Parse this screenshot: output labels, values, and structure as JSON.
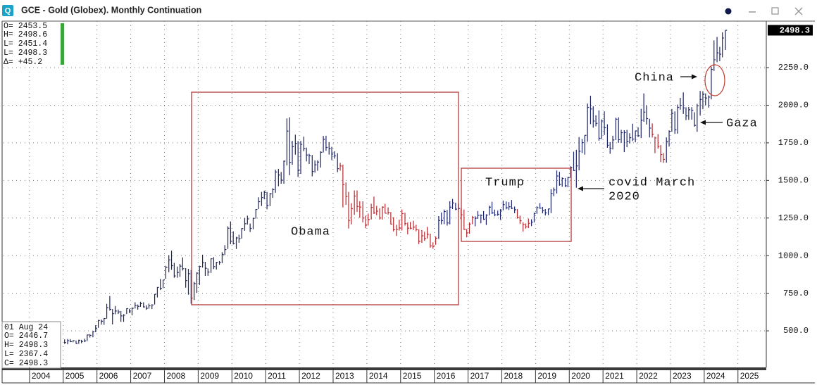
{
  "window_title": "GCE - Gold (Globex). Monthly Continuation",
  "header_info": [
    "O= 2453.5",
    "H= 2498.6",
    "L= 2451.4",
    "L= 2498.3",
    "Δ=  +45.2"
  ],
  "bar_info": [
    "01 Aug 24",
    "O=  2446.7",
    "H=  2498.3",
    "L=  2367.4",
    "C=  2498.3"
  ],
  "chart_data": {
    "type": "ohlc",
    "annotations": [
      "Obama",
      "Trump",
      "covid March",
      "2020",
      "China",
      "Gaza"
    ],
    "last_price": 2498.3,
    "xlim": [
      2003.23,
      2025.84
    ],
    "xticks": [
      2004,
      2005,
      2006,
      2007,
      2008,
      2009,
      2010,
      2011,
      2012,
      2013,
      2014,
      2015,
      2016,
      2017,
      2018,
      2019,
      2020,
      2021,
      2022,
      2023,
      2024,
      2025
    ],
    "ylim": [
      257,
      2559
    ],
    "yticks": [
      {
        "value": 500,
        "label": "500.0"
      },
      {
        "value": 750,
        "label": "750.0"
      },
      {
        "value": 1000,
        "label": "1000.0"
      },
      {
        "value": 1250,
        "label": "1250.0"
      },
      {
        "value": 1500,
        "label": "1500.0"
      },
      {
        "value": 1750,
        "label": "1750.0"
      },
      {
        "value": 2000,
        "label": "2000.0"
      },
      {
        "value": 2250,
        "label": "2250.0"
      }
    ],
    "grid": true,
    "x": [
      2005.04,
      2005.13,
      2005.21,
      2005.29,
      2005.38,
      2005.46,
      2005.54,
      2005.63,
      2005.71,
      2005.79,
      2005.88,
      2005.96,
      2006.04,
      2006.13,
      2006.21,
      2006.29,
      2006.38,
      2006.46,
      2006.54,
      2006.63,
      2006.71,
      2006.79,
      2006.88,
      2006.96,
      2007.04,
      2007.13,
      2007.21,
      2007.29,
      2007.38,
      2007.46,
      2007.54,
      2007.63,
      2007.71,
      2007.79,
      2007.88,
      2007.96,
      2008.04,
      2008.13,
      2008.21,
      2008.29,
      2008.38,
      2008.46,
      2008.54,
      2008.63,
      2008.71,
      2008.79,
      2008.88,
      2008.96,
      2009.04,
      2009.13,
      2009.21,
      2009.29,
      2009.38,
      2009.46,
      2009.54,
      2009.63,
      2009.71,
      2009.79,
      2009.88,
      2009.96,
      2010.04,
      2010.13,
      2010.21,
      2010.29,
      2010.38,
      2010.46,
      2010.54,
      2010.63,
      2010.71,
      2010.79,
      2010.88,
      2010.96,
      2011.04,
      2011.13,
      2011.21,
      2011.29,
      2011.38,
      2011.46,
      2011.54,
      2011.63,
      2011.71,
      2011.79,
      2011.88,
      2011.96,
      2012.04,
      2012.13,
      2012.21,
      2012.29,
      2012.38,
      2012.46,
      2012.54,
      2012.63,
      2012.71,
      2012.79,
      2012.88,
      2012.96,
      2013.04,
      2013.13,
      2013.21,
      2013.29,
      2013.38,
      2013.46,
      2013.54,
      2013.63,
      2013.71,
      2013.79,
      2013.88,
      2013.96,
      2014.04,
      2014.13,
      2014.21,
      2014.29,
      2014.38,
      2014.46,
      2014.54,
      2014.63,
      2014.71,
      2014.79,
      2014.88,
      2014.96,
      2015.04,
      2015.13,
      2015.21,
      2015.29,
      2015.38,
      2015.46,
      2015.54,
      2015.63,
      2015.71,
      2015.79,
      2015.88,
      2015.96,
      2016.04,
      2016.13,
      2016.21,
      2016.29,
      2016.38,
      2016.46,
      2016.54,
      2016.63,
      2016.71,
      2016.79,
      2016.88,
      2016.96,
      2017.04,
      2017.13,
      2017.21,
      2017.29,
      2017.38,
      2017.46,
      2017.54,
      2017.63,
      2017.71,
      2017.79,
      2017.88,
      2017.96,
      2018.04,
      2018.13,
      2018.21,
      2018.29,
      2018.38,
      2018.46,
      2018.54,
      2018.63,
      2018.71,
      2018.79,
      2018.88,
      2018.96,
      2019.04,
      2019.13,
      2019.21,
      2019.29,
      2019.38,
      2019.46,
      2019.54,
      2019.63,
      2019.71,
      2019.79,
      2019.88,
      2019.96,
      2020.04,
      2020.13,
      2020.21,
      2020.29,
      2020.38,
      2020.46,
      2020.54,
      2020.63,
      2020.71,
      2020.79,
      2020.88,
      2020.96,
      2021.04,
      2021.13,
      2021.21,
      2021.29,
      2021.38,
      2021.46,
      2021.54,
      2021.63,
      2021.71,
      2021.79,
      2021.88,
      2021.96,
      2022.04,
      2022.13,
      2022.21,
      2022.29,
      2022.38,
      2022.46,
      2022.54,
      2022.63,
      2022.71,
      2022.79,
      2022.88,
      2022.96,
      2023.04,
      2023.13,
      2023.21,
      2023.29,
      2023.38,
      2023.46,
      2023.54,
      2023.63,
      2023.71,
      2023.79,
      2023.88,
      2023.96,
      2024.04,
      2024.13,
      2024.21,
      2024.29,
      2024.38,
      2024.46,
      2024.54,
      2024.63
    ],
    "high": [
      443,
      446,
      445,
      437,
      436,
      441,
      440,
      447,
      475,
      478,
      497,
      538,
      573,
      575,
      585,
      680,
      732,
      645,
      665,
      642,
      632,
      611,
      650,
      647,
      655,
      690,
      675,
      693,
      690,
      670,
      681,
      677,
      744,
      791,
      845,
      839,
      932,
      1003,
      1033,
      952,
      927,
      945,
      988,
      917,
      912,
      904,
      825,
      889,
      933,
      1006,
      959,
      915,
      982,
      990,
      959,
      964,
      1023,
      1070,
      1195,
      1227,
      1162,
      1125,
      1139,
      1182,
      1250,
      1266,
      1213,
      1252,
      1310,
      1388,
      1424,
      1432,
      1423,
      1416,
      1448,
      1571,
      1577,
      1556,
      1632,
      1912,
      1920,
      1763,
      1804,
      1762,
      1763,
      1791,
      1718,
      1677,
      1669,
      1633,
      1634,
      1694,
      1796,
      1797,
      1755,
      1723,
      1694,
      1681,
      1616,
      1605,
      1487,
      1424,
      1349,
      1434,
      1434,
      1362,
      1361,
      1266,
      1280,
      1345,
      1392,
      1331,
      1315,
      1328,
      1345,
      1321,
      1290,
      1256,
      1205,
      1239,
      1307,
      1285,
      1220,
      1224,
      1232,
      1205,
      1175,
      1170,
      1159,
      1191,
      1146,
      1088,
      1128,
      1263,
      1287,
      1306,
      1304,
      1362,
      1377,
      1352,
      1344,
      1317,
      1306,
      1177,
      1220,
      1264,
      1262,
      1297,
      1274,
      1296,
      1275,
      1332,
      1358,
      1306,
      1299,
      1309,
      1366,
      1360,
      1356,
      1370,
      1326,
      1309,
      1266,
      1221,
      1214,
      1246,
      1242,
      1285,
      1327,
      1349,
      1324,
      1310,
      1311,
      1442,
      1453,
      1566,
      1557,
      1520,
      1516,
      1523,
      1594,
      1691,
      1704,
      1788,
      1775,
      1800,
      2011,
      2063,
      1992,
      1933,
      1966,
      1906,
      1959,
      1873,
      1755,
      1797,
      1916,
      1919,
      1836,
      1834,
      1836,
      1814,
      1877,
      1831,
      1853,
      1976,
      2078,
      1998,
      1910,
      1879,
      1791,
      1808,
      1735,
      1682,
      1786,
      1833,
      1975,
      1959,
      2004,
      2049,
      2085,
      1986,
      1989,
      1987,
      1953,
      2009,
      2095,
      2093,
      2078,
      2065,
      2256,
      2431,
      2454,
      2388,
      2484,
      2498.3
    ],
    "low": [
      414,
      411,
      425,
      424,
      414,
      414,
      418,
      425,
      432,
      456,
      457,
      491,
      520,
      541,
      540,
      581,
      635,
      543,
      610,
      612,
      560,
      560,
      612,
      617,
      603,
      648,
      641,
      660,
      654,
      640,
      647,
      645,
      675,
      722,
      771,
      784,
      846,
      890,
      906,
      853,
      853,
      859,
      901,
      787,
      740,
      681,
      705,
      752,
      805,
      920,
      865,
      866,
      885,
      911,
      908,
      939,
      950,
      1003,
      1044,
      1076,
      1074,
      1044,
      1086,
      1113,
      1165,
      1207,
      1157,
      1175,
      1246,
      1310,
      1330,
      1374,
      1308,
      1329,
      1384,
      1418,
      1462,
      1478,
      1478,
      1600,
      1535,
      1604,
      1671,
      1523,
      1543,
      1694,
      1627,
      1609,
      1527,
      1552,
      1564,
      1585,
      1686,
      1697,
      1672,
      1635,
      1645,
      1555,
      1565,
      1321,
      1338,
      1180,
      1208,
      1271,
      1291,
      1251,
      1221,
      1182,
      1200,
      1240,
      1277,
      1268,
      1240,
      1240,
      1281,
      1273,
      1207,
      1161,
      1131,
      1167,
      1167,
      1200,
      1142,
      1175,
      1170,
      1162,
      1077,
      1085,
      1099,
      1114,
      1053,
      1046,
      1072,
      1111,
      1208,
      1209,
      1200,
      1208,
      1310,
      1302,
      1302,
      1241,
      1171,
      1122,
      1146,
      1209,
      1195,
      1245,
      1215,
      1238,
      1204,
      1267,
      1277,
      1262,
      1265,
      1238,
      1301,
      1308,
      1304,
      1310,
      1282,
      1246,
      1211,
      1160,
      1180,
      1183,
      1196,
      1221,
      1278,
      1311,
      1281,
      1267,
      1269,
      1283,
      1395,
      1413,
      1465,
      1458,
      1456,
      1454,
      1517,
      1563,
      1451,
      1567,
      1682,
      1671,
      1757,
      1874,
      1851,
      1860,
      1764,
      1775,
      1802,
      1717,
      1677,
      1706,
      1768,
      1750,
      1750,
      1688,
      1721,
      1746,
      1761,
      1753,
      1788,
      1782,
      1890,
      1872,
      1786,
      1785,
      1681,
      1711,
      1622,
      1617,
      1618,
      1725,
      1824,
      1810,
      1811,
      1970,
      1942,
      1901,
      1903,
      1904,
      1858,
      1823,
      1931,
      1973,
      2001,
      1984,
      2039,
      2228,
      2286,
      2293,
      2318,
      2367.4
    ],
    "close": [
      422,
      435,
      428,
      435,
      416,
      437,
      429,
      433,
      473,
      470,
      495,
      518,
      569,
      564,
      582,
      654,
      643,
      614,
      632,
      626,
      599,
      604,
      648,
      632,
      650,
      669,
      663,
      681,
      659,
      650,
      666,
      672,
      743,
      789,
      783,
      838,
      923,
      972,
      933,
      865,
      888,
      930,
      913,
      834,
      880,
      718,
      814,
      884,
      928,
      952,
      916,
      891,
      979,
      927,
      955,
      955,
      1008,
      1040,
      1182,
      1096,
      1081,
      1118,
      1113,
      1180,
      1212,
      1244,
      1181,
      1248,
      1307,
      1359,
      1386,
      1421,
      1333,
      1411,
      1439,
      1556,
      1536,
      1502,
      1628,
      1828,
      1620,
      1725,
      1746,
      1566,
      1740,
      1711,
      1669,
      1664,
      1559,
      1604,
      1622,
      1687,
      1773,
      1719,
      1712,
      1675,
      1663,
      1578,
      1596,
      1472,
      1393,
      1234,
      1313,
      1396,
      1327,
      1323,
      1250,
      1202,
      1240,
      1321,
      1284,
      1296,
      1250,
      1322,
      1282,
      1287,
      1210,
      1172,
      1175,
      1184,
      1279,
      1213,
      1183,
      1182,
      1190,
      1172,
      1095,
      1132,
      1114,
      1142,
      1065,
      1061,
      1116,
      1234,
      1233,
      1293,
      1217,
      1322,
      1350,
      1309,
      1313,
      1272,
      1174,
      1151,
      1210,
      1252,
      1249,
      1268,
      1268,
      1242,
      1269,
      1322,
      1284,
      1271,
      1275,
      1303,
      1339,
      1318,
      1325,
      1315,
      1305,
      1253,
      1232,
      1206,
      1192,
      1215,
      1223,
      1281,
      1319,
      1316,
      1298,
      1284,
      1311,
      1413,
      1437,
      1529,
      1473,
      1513,
      1464,
      1519,
      1587,
      1566,
      1596,
      1694,
      1751,
      1800,
      1986,
      1975,
      1895,
      1879,
      1780,
      1895,
      1850,
      1734,
      1713,
      1769,
      1907,
      1771,
      1817,
      1818,
      1757,
      1784,
      1775,
      1829,
      1797,
      1900,
      1954,
      1911,
      1848,
      1807,
      1782,
      1726,
      1672,
      1640,
      1759,
      1826,
      1946,
      1836,
      1986,
      1999,
      1982,
      1929,
      1970,
      1966,
      1866,
      1996,
      2038,
      2071,
      2048,
      2054,
      2238,
      2302,
      2348,
      2339,
      2447,
      2498.3
    ],
    "colors": [
      "#1c2366",
      "#1c2366",
      "#1c2366",
      "#1c2366",
      "#1c2366",
      "#1c2366",
      "#1c2366",
      "#1c2366",
      "#1c2366",
      "#1c2366",
      "#1c2366",
      "#1c2366",
      "#1c2366",
      "#1c2366",
      "#1c2366",
      "#1c2366",
      "#1c2366",
      "#1c2366",
      "#1c2366",
      "#1c2366",
      "#1c2366",
      "#1c2366",
      "#1c2366",
      "#1c2366",
      "#1c2366",
      "#1c2366",
      "#1c2366",
      "#1c2366",
      "#1c2366",
      "#1c2366",
      "#1c2366",
      "#1c2366",
      "#1c2366",
      "#1c2366",
      "#1c2366",
      "#1c2366",
      "#1c2366",
      "#1c2366",
      "#1c2366",
      "#1c2366",
      "#1c2366",
      "#1c2366",
      "#1c2366",
      "#1c2366",
      "#1c2366",
      "#1c2366",
      "#1c2366",
      "#1c2366",
      "#1c2366",
      "#1c2366",
      "#1c2366",
      "#1c2366",
      "#1c2366",
      "#1c2366",
      "#1c2366",
      "#1c2366",
      "#1c2366",
      "#1c2366",
      "#1c2366",
      "#1c2366",
      "#1c2366",
      "#1c2366",
      "#1c2366",
      "#1c2366",
      "#1c2366",
      "#1c2366",
      "#1c2366",
      "#1c2366",
      "#1c2366",
      "#1c2366",
      "#1c2366",
      "#1c2366",
      "#1c2366",
      "#1c2366",
      "#1c2366",
      "#1c2366",
      "#1c2366",
      "#1c2366",
      "#1c2366",
      "#1c2366",
      "#1c2366",
      "#1c2366",
      "#1c2366",
      "#1c2366",
      "#1c2366",
      "#1c2366",
      "#1c2366",
      "#1c2366",
      "#1c2366",
      "#1c2366",
      "#1c2366",
      "#1c2366",
      "#1c2366",
      "#1c2366",
      "#1c2366",
      "#1c2366",
      "#1c2366",
      "#1c2366",
      "#b2282d",
      "#b2282d",
      "#b2282d",
      "#b2282d",
      "#b2282d",
      "#b2282d",
      "#b2282d",
      "#b2282d",
      "#b2282d",
      "#b2282d",
      "#b2282d",
      "#b2282d",
      "#b2282d",
      "#b2282d",
      "#b2282d",
      "#b2282d",
      "#b2282d",
      "#b2282d",
      "#b2282d",
      "#b2282d",
      "#b2282d",
      "#b2282d",
      "#b2282d",
      "#b2282d",
      "#b2282d",
      "#b2282d",
      "#b2282d",
      "#b2282d",
      "#b2282d",
      "#b2282d",
      "#b2282d",
      "#b2282d",
      "#b2282d",
      "#b2282d",
      "#b2282d",
      "#1c2366",
      "#1c2366",
      "#1c2366",
      "#1c2366",
      "#1c2366",
      "#1c2366",
      "#1c2366",
      "#1c2366",
      "#b2282d",
      "#b2282d",
      "#b2282d",
      "#b2282d",
      "#b2282d",
      "#1c2366",
      "#1c2366",
      "#1c2366",
      "#1c2366",
      "#1c2366",
      "#1c2366",
      "#1c2366",
      "#1c2366",
      "#1c2366",
      "#1c2366",
      "#1c2366",
      "#1c2366",
      "#1c2366",
      "#1c2366",
      "#1c2366",
      "#b2282d",
      "#b2282d",
      "#b2282d",
      "#b2282d",
      "#b2282d",
      "#1c2366",
      "#1c2366",
      "#1c2366",
      "#1c2366",
      "#1c2366",
      "#1c2366",
      "#1c2366",
      "#1c2366",
      "#1c2366",
      "#1c2366",
      "#1c2366",
      "#1c2366",
      "#1c2366",
      "#1c2366",
      "#1c2366",
      "#1c2366",
      "#1c2366",
      "#1c2366",
      "#1c2366",
      "#1c2366",
      "#1c2366",
      "#1c2366",
      "#1c2366",
      "#1c2366",
      "#1c2366",
      "#1c2366",
      "#1c2366",
      "#1c2366",
      "#1c2366",
      "#1c2366",
      "#1c2366",
      "#1c2366",
      "#1c2366",
      "#1c2366",
      "#1c2366",
      "#1c2366",
      "#1c2366",
      "#1c2366",
      "#1c2366",
      "#1c2366",
      "#1c2366",
      "#1c2366",
      "#1c2366",
      "#b2282d",
      "#b2282d",
      "#b2282d",
      "#b2282d",
      "#b2282d",
      "#1c2366",
      "#1c2366",
      "#1c2366",
      "#1c2366",
      "#1c2366",
      "#1c2366",
      "#1c2366",
      "#1c2366",
      "#1c2366",
      "#1c2366",
      "#1c2366",
      "#1c2366",
      "#1c2366",
      "#1c2366",
      "#1c2366",
      "#1c2366",
      "#1c2366",
      "#1c2366",
      "#1c2366",
      "#1c2366",
      "#1c2366",
      "#1c2366"
    ]
  }
}
